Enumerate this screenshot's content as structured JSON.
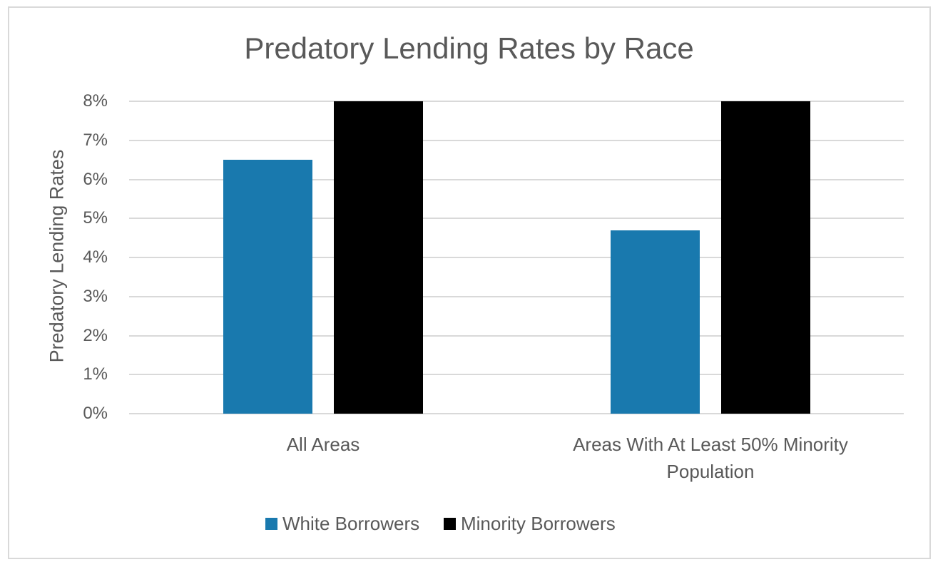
{
  "chart_data": {
    "type": "bar",
    "title": "Predatory Lending Rates by Race",
    "xlabel": "",
    "ylabel": "Predatory Lending Rates",
    "ylim": [
      0,
      8
    ],
    "yticks": [
      "0%",
      "1%",
      "2%",
      "3%",
      "4%",
      "5%",
      "6%",
      "7%",
      "8%"
    ],
    "grid": true,
    "legend_position": "bottom",
    "categories": [
      "All Areas",
      "Areas With At Least 50% Minority Population"
    ],
    "series": [
      {
        "name": "White Borrowers",
        "color": "#1979ae",
        "values": [
          6.5,
          4.7
        ]
      },
      {
        "name": "Minority Borrowers",
        "color": "#000000",
        "values": [
          8.0,
          8.0
        ],
        "note": "bars reach/clip at axis maximum (>=8%)"
      }
    ]
  },
  "labels": {
    "title": "Predatory Lending Rates by Race",
    "ylabel": "Predatory Lending Rates",
    "cat0": "All Areas",
    "cat1_line1": "Areas With At Least 50% Minority",
    "cat1_line2": "Population",
    "legend0": "White Borrowers",
    "legend1": "Minority Borrowers"
  }
}
